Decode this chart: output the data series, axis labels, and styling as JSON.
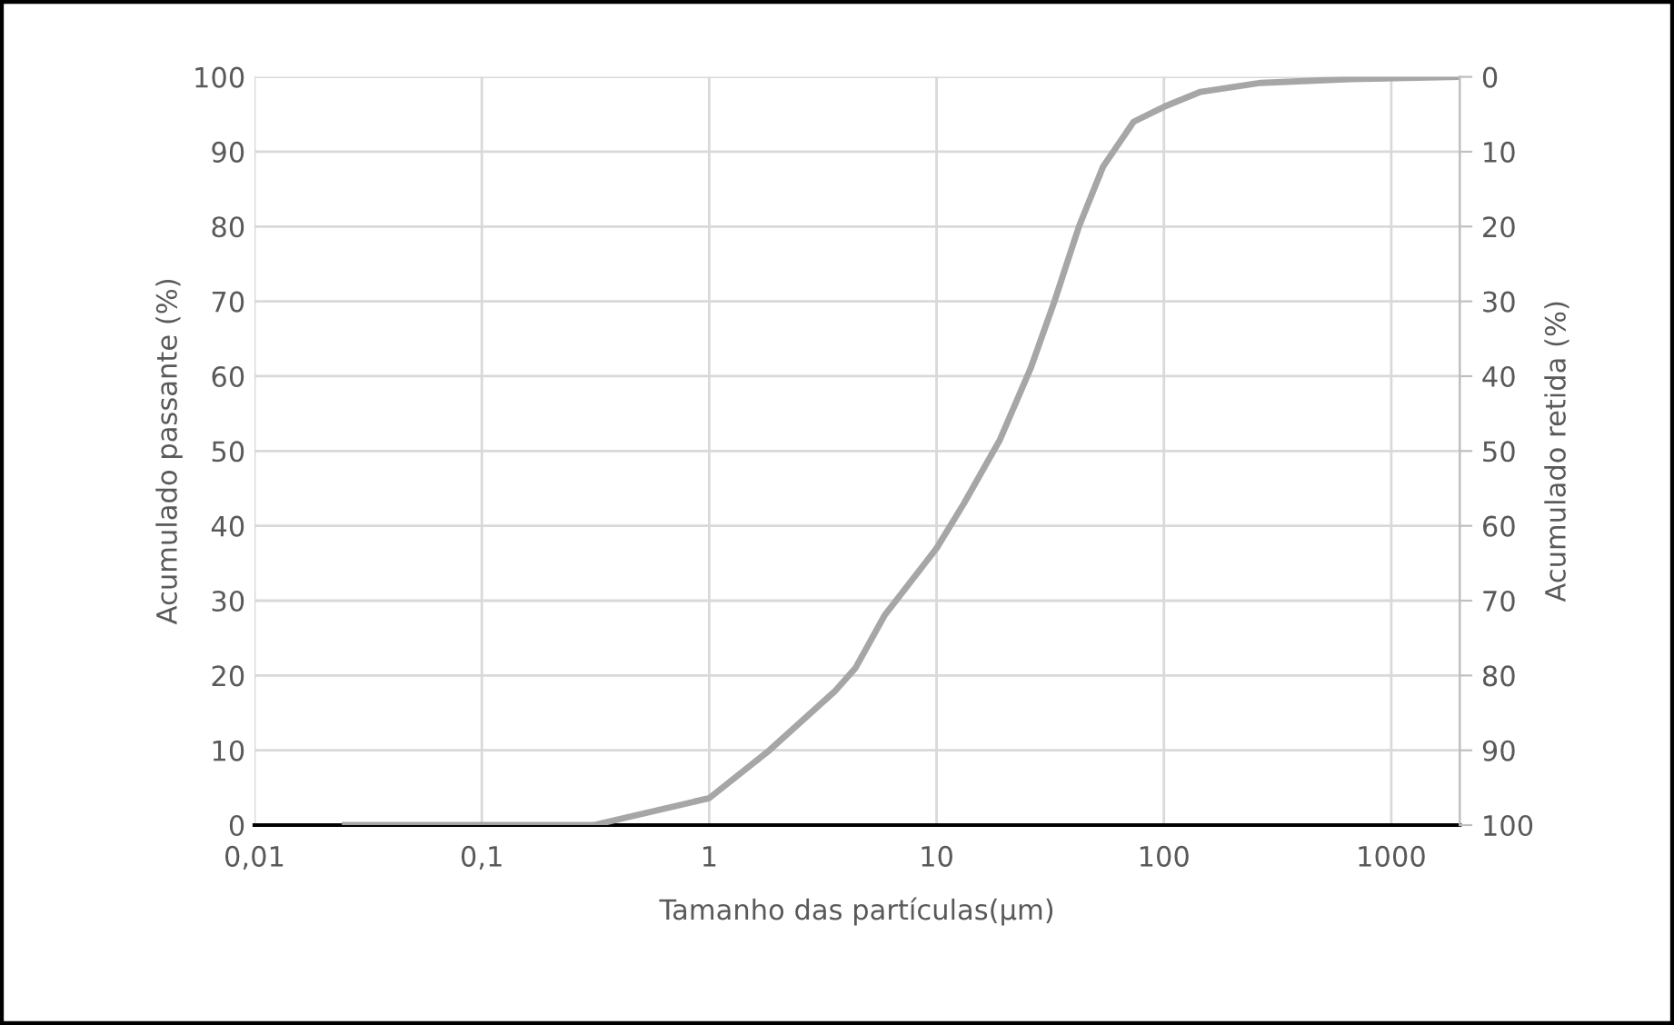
{
  "chart_data": {
    "type": "line",
    "xlabel": "Tamanho das partículas(µm)",
    "ylabel": "Acumulado passante (%)",
    "y2label": "Acumulado retida (%)",
    "log": "x",
    "grid": true,
    "marker": "none",
    "line_style": "solid",
    "xlim": [
      0.01,
      2000
    ],
    "xticks": [
      {
        "value": 0.01,
        "label": "0,01"
      },
      {
        "value": 0.1,
        "label": "0,1"
      },
      1,
      10,
      100,
      1000
    ],
    "ylim": [
      0,
      100
    ],
    "yticks": [
      0,
      10,
      20,
      30,
      40,
      50,
      60,
      70,
      80,
      90,
      100
    ],
    "y2lim": [
      100,
      0
    ],
    "y2ticks": [
      0,
      10,
      20,
      30,
      40,
      50,
      60,
      70,
      80,
      90,
      100
    ],
    "series": [
      {
        "color": "#a6a6a6",
        "x": [
          0.025,
          0.31,
          1,
          1.84,
          3.6,
          4.4,
          5.9,
          10,
          13.2,
          19,
          25.9,
          33,
          42.3,
          54,
          73.6,
          100,
          145,
          267,
          665,
          2000
        ],
        "values": [
          0,
          0,
          3.6,
          10,
          18,
          21,
          28,
          37,
          43,
          51.5,
          61,
          70,
          80,
          88,
          94,
          96,
          98,
          99.2,
          99.7,
          100
        ]
      }
    ]
  }
}
